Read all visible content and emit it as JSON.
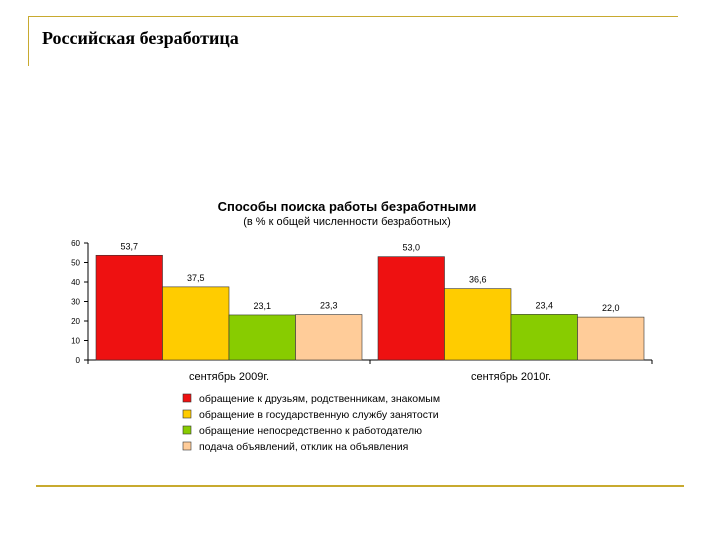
{
  "slide": {
    "title": "Российская безработица"
  },
  "chart_data": {
    "type": "bar",
    "title": "Способы поиска работы безработными",
    "subtitle": "(в % к общей численности безработных)",
    "categories": [
      "сентябрь 2009г.",
      "сентябрь 2010г."
    ],
    "series": [
      {
        "name": "обращение к друзьям, родственникам, знакомым",
        "color": "#ee1111",
        "values": [
          53.7,
          53.0
        ],
        "labels": [
          "53,7",
          "53,0"
        ]
      },
      {
        "name": "обращение в государственную службу занятости",
        "color": "#ffcc00",
        "values": [
          37.5,
          36.6
        ],
        "labels": [
          "37,5",
          "36,6"
        ]
      },
      {
        "name": "обращение непосредственно к работодателю",
        "color": "#88cc00",
        "values": [
          23.1,
          23.4
        ],
        "labels": [
          "23,1",
          "23,4"
        ]
      },
      {
        "name": "подача объявлений, отклик на объявления",
        "color": "#ffcc99",
        "values": [
          23.3,
          22.0
        ],
        "labels": [
          "23,3",
          "22,0"
        ]
      }
    ],
    "yticks": [
      "0",
      "10",
      "20",
      "30",
      "40",
      "50",
      "60"
    ],
    "ylim": [
      0,
      60
    ],
    "legend_position": "bottom",
    "grid": false
  }
}
